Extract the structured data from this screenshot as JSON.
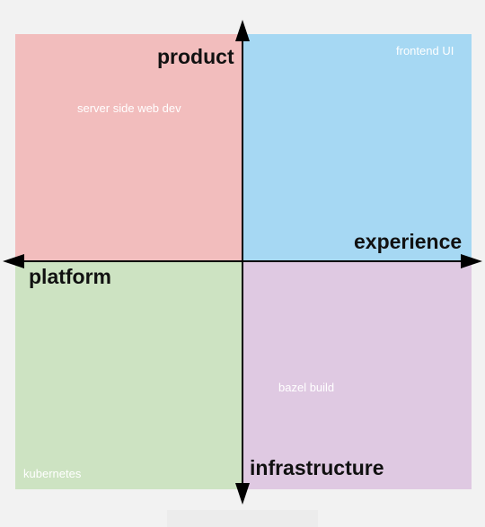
{
  "axes": {
    "top": "product",
    "bottom": "infrastructure",
    "left": "platform",
    "right": "experience"
  },
  "quadrants": {
    "top_left": {
      "label": "server side web dev",
      "color": "#f2bdbd"
    },
    "top_right": {
      "label": "frontend UI",
      "color": "#a6d8f3"
    },
    "bottom_left": {
      "label": "kubernetes",
      "color": "#cde3c2"
    },
    "bottom_right": {
      "label": "bazel build",
      "color": "#dfc9e2"
    }
  },
  "colors": {
    "axis": "#000000",
    "background": "#f2f2f2"
  }
}
